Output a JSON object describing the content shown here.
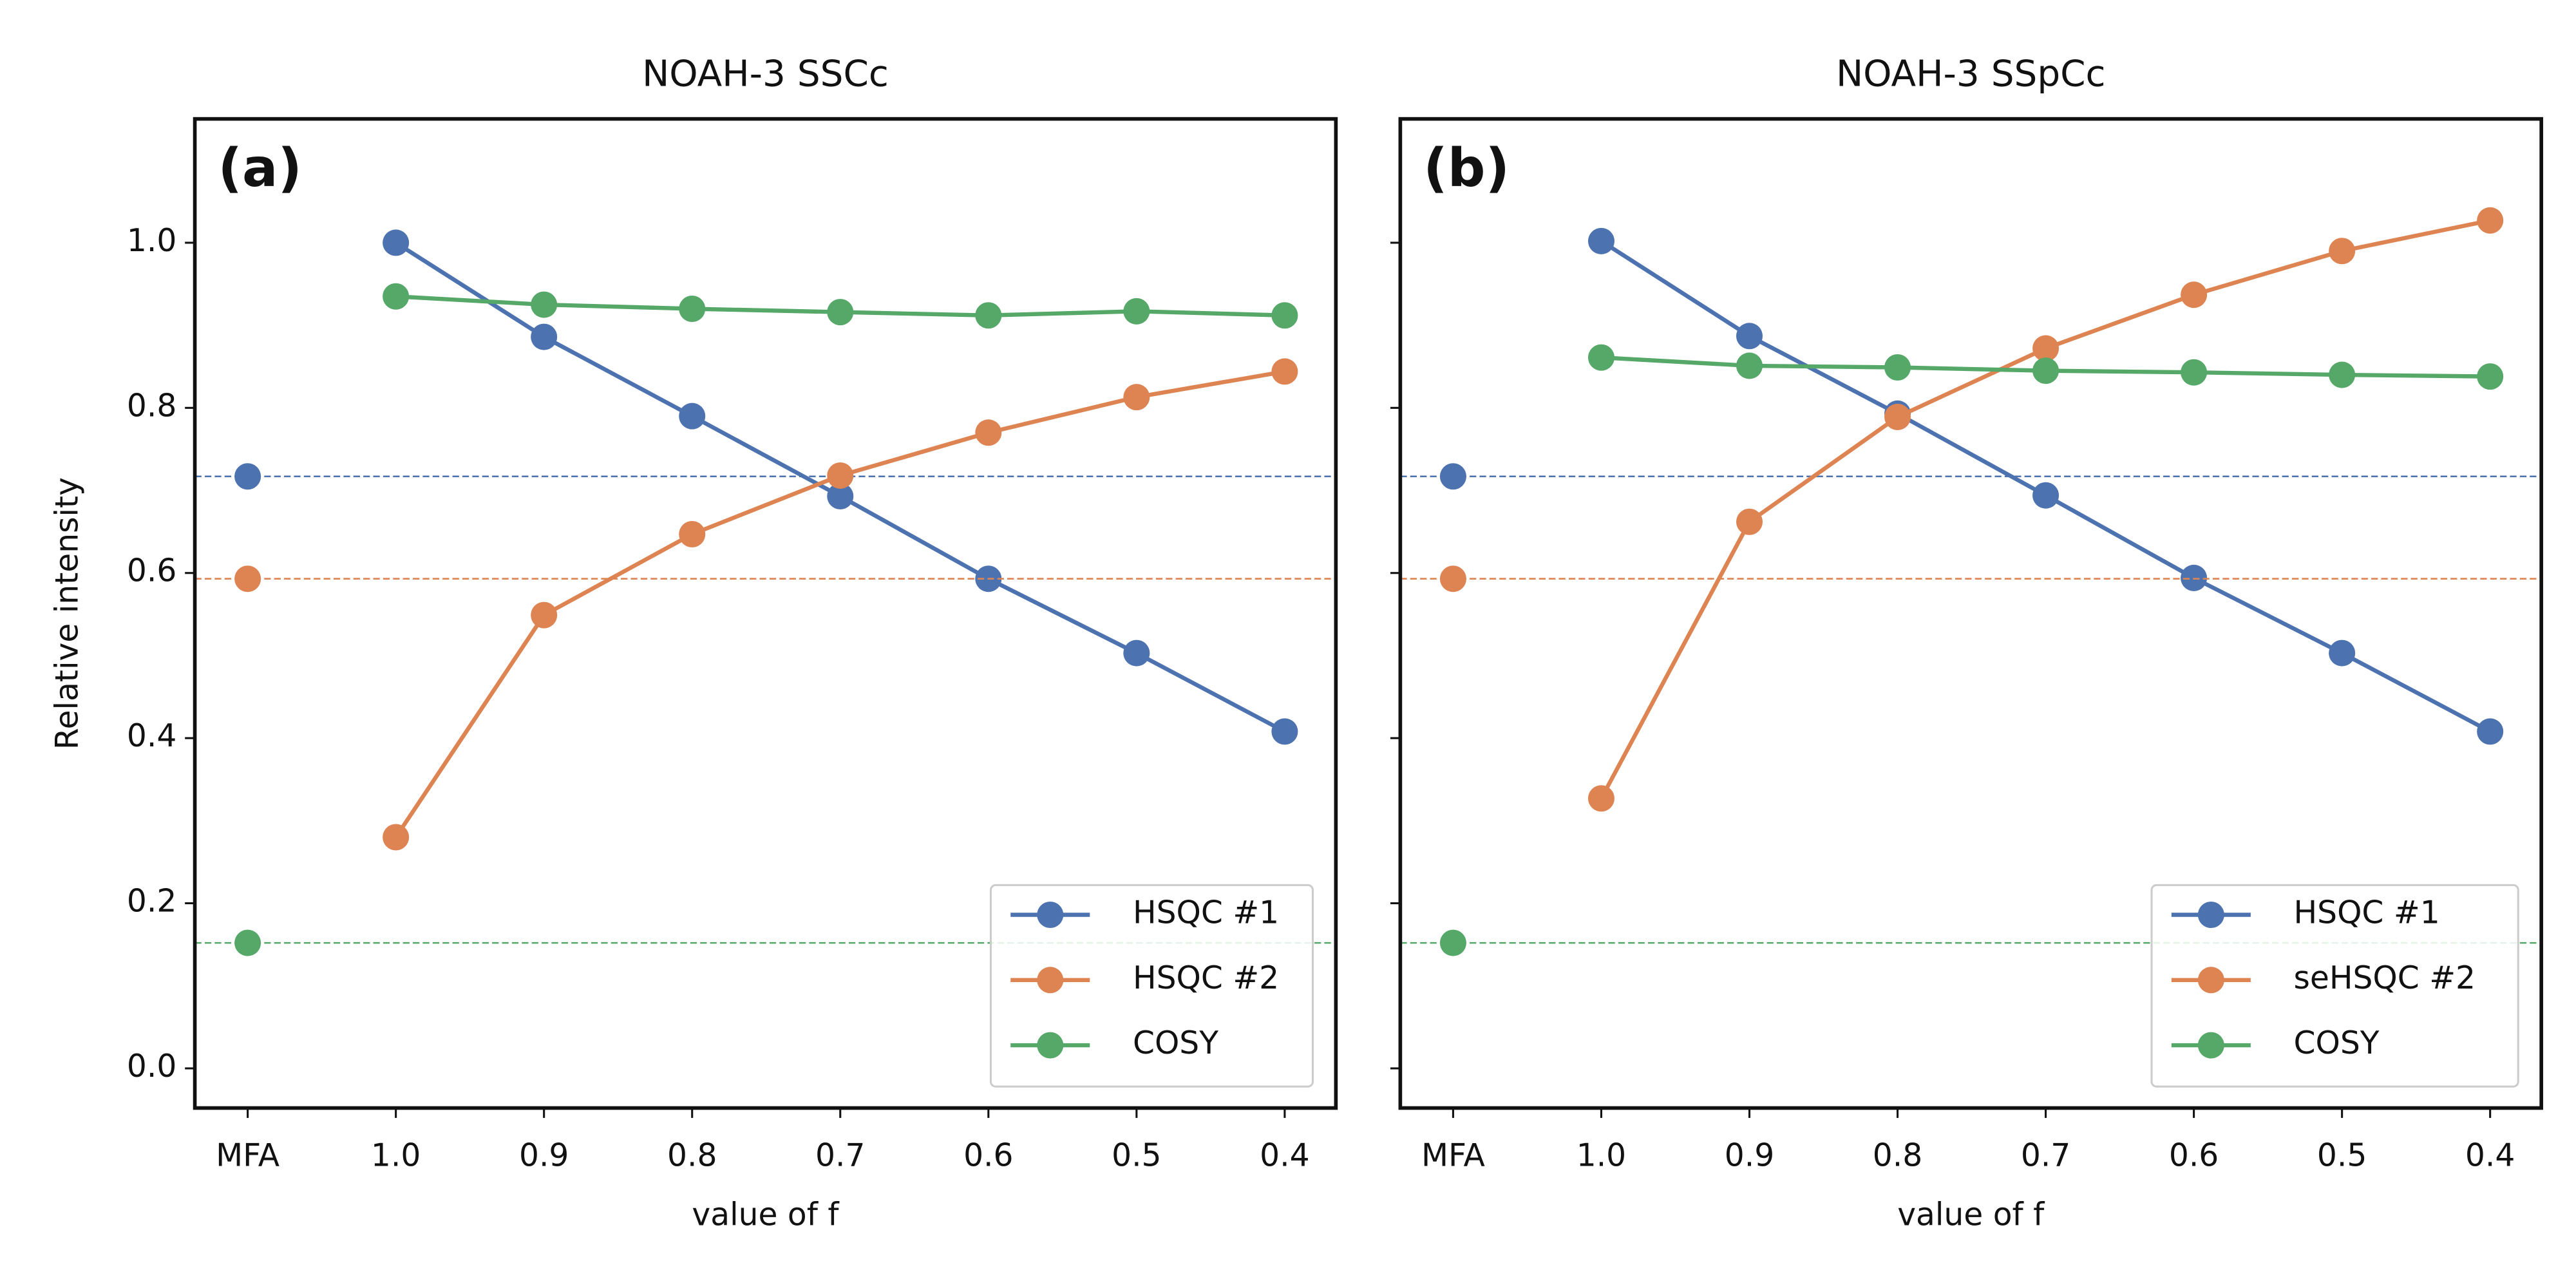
{
  "chart_data": [
    {
      "type": "line",
      "title": "NOAH-3 SSCc",
      "annotation": "(a)",
      "xlabel": "value of f",
      "ylabel": "Relative intensity",
      "categories": [
        "MFA",
        "1.0",
        "0.9",
        "0.8",
        "0.7",
        "0.6",
        "0.5",
        "0.4"
      ],
      "first_category_reference": true,
      "series": [
        {
          "name": "HSQC #1",
          "color": "#4c72b0",
          "values": [
            0.717,
            1.0,
            0.886,
            0.79,
            0.693,
            0.593,
            0.503,
            0.408
          ]
        },
        {
          "name": "HSQC #2",
          "color": "#dd8452",
          "values": [
            0.593,
            0.28,
            0.549,
            0.647,
            0.718,
            0.77,
            0.813,
            0.844
          ]
        },
        {
          "name": "COSY",
          "color": "#55a868",
          "values": [
            0.152,
            0.935,
            0.925,
            0.92,
            0.916,
            0.912,
            0.917,
            0.912
          ]
        }
      ],
      "ylim": [
        -0.048,
        1.15
      ],
      "yticks": [
        {
          "value": 0,
          "label": "0.0"
        },
        0.2,
        0.4,
        0.6,
        0.8,
        {
          "value": 1,
          "label": "1.0"
        }
      ],
      "show_ytick_labels": true,
      "legend": "lower right"
    },
    {
      "type": "line",
      "title": "NOAH-3 SSpCc",
      "annotation": "(b)",
      "xlabel": "value of f",
      "categories": [
        "MFA",
        "1.0",
        "0.9",
        "0.8",
        "0.7",
        "0.6",
        "0.5",
        "0.4"
      ],
      "first_category_reference": true,
      "series": [
        {
          "name": "HSQC #1",
          "color": "#4c72b0",
          "values": [
            0.717,
            1.002,
            0.887,
            0.793,
            0.694,
            0.594,
            0.503,
            0.408
          ]
        },
        {
          "name": "seHSQC #2",
          "color": "#dd8452",
          "values": [
            0.593,
            0.327,
            0.662,
            0.789,
            0.872,
            0.937,
            0.99,
            1.027
          ]
        },
        {
          "name": "COSY",
          "color": "#55a868",
          "values": [
            0.152,
            0.861,
            0.851,
            0.849,
            0.845,
            0.843,
            0.84,
            0.838
          ]
        }
      ],
      "ylim": [
        -0.048,
        1.15
      ],
      "yticks": [
        {
          "value": 0,
          "label": "0.0"
        },
        0.2,
        0.4,
        0.6,
        0.8,
        {
          "value": 1,
          "label": "1.0"
        }
      ],
      "show_ytick_labels": false,
      "legend": "lower right"
    }
  ]
}
